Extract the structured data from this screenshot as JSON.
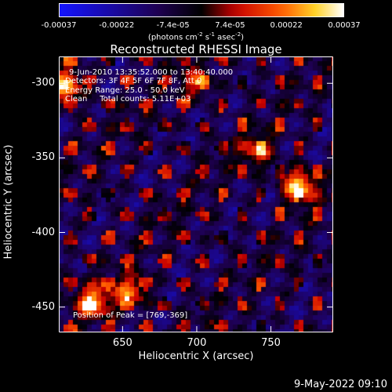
{
  "chart_data": {
    "type": "heatmap",
    "title": "Reconstructed RHESSI Image",
    "xlabel": "Heliocentric X (arcsec)",
    "ylabel": "Heliocentric Y (arcsec)",
    "xlim": [
      607,
      792
    ],
    "ylim": [
      -467,
      -282
    ],
    "x_ticks": [
      "650",
      "700",
      "750"
    ],
    "x_tick_values": [
      650,
      700,
      750
    ],
    "y_ticks": [
      "-300",
      "-350",
      "-400",
      "-450"
    ],
    "y_tick_values": [
      -300,
      -350,
      -400,
      -450
    ],
    "colorbar": {
      "range": [
        -0.00037,
        0.00037
      ],
      "tick_labels": [
        "-0.00037",
        "-0.00022",
        "-7.4e-05",
        "7.4e-05",
        "0.00022",
        "0.00037"
      ],
      "tick_values": [
        -0.00037,
        -0.00022,
        -7.4e-05,
        7.4e-05,
        0.00022,
        0.00037
      ],
      "units_parts": [
        "(photons cm",
        "-2",
        " s",
        "-1",
        " asec",
        "-2",
        ")"
      ]
    },
    "annotations": [
      "9-Jun-2010 13:35:52.000 to 13:40:40.000",
      "Detectors: 3F 4F 5F 6F 7F 8F, Att 0",
      "Energy Range: 25.0 - 50.0 keV",
      "Clean     Total counts: 5.11E+03"
    ],
    "peak_label": "Position of Peak = [769,-369]",
    "peak": {
      "x": 769,
      "y": -369
    },
    "hotspots": [
      {
        "x": 612,
        "y": -302,
        "value": 0.00034
      },
      {
        "x": 769,
        "y": -369,
        "value": 0.00037
      },
      {
        "x": 630,
        "y": -447,
        "value": 0.00031
      },
      {
        "x": 655,
        "y": -440,
        "value": 0.00025
      },
      {
        "x": 740,
        "y": -345,
        "value": 0.0002
      },
      {
        "x": 700,
        "y": -300,
        "value": 0.00018
      }
    ],
    "colors": {
      "background": "#000000",
      "text": "#ffffff",
      "field": "#5a1ab0"
    }
  },
  "footer_date": "9-May-2022 09:10"
}
